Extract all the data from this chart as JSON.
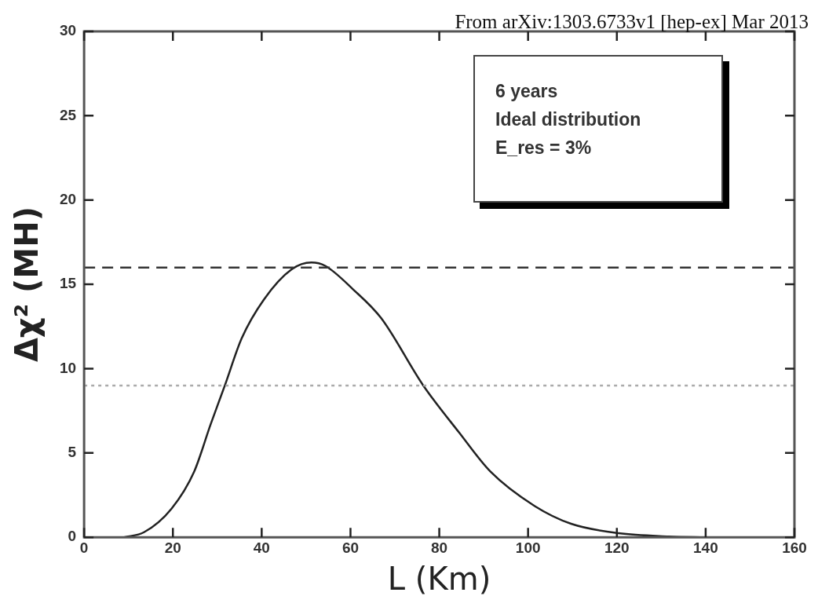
{
  "chart_data": {
    "type": "line",
    "xlabel": "L (Km)",
    "ylabel": "Δχ² (MH)",
    "annotations": [
      "From arXiv:1303.6733v1 [hep-ex] Mar 2013",
      "6 years",
      "Ideal distribution",
      "E_res = 3%"
    ],
    "x": [
      9,
      13.5,
      19.7,
      24.8,
      28.5,
      31.7,
      35.5,
      40.5,
      46.8,
      51.2,
      54.3,
      60.6,
      66.9,
      76.4,
      84.5,
      91.5,
      101.5,
      109.7,
      120.4,
      131.7,
      140
    ],
    "series": [
      {
        "color": "#222222",
        "values": [
          0,
          0.3,
          1.7,
          3.9,
          6.7,
          9.0,
          11.8,
          14.1,
          15.9,
          16.3,
          16.1,
          14.7,
          13.0,
          9.0,
          6.2,
          3.9,
          1.85,
          0.8,
          0.24,
          0.05,
          0
        ]
      }
    ],
    "xlim": [
      0,
      160
    ],
    "xticks": [
      0,
      20,
      40,
      60,
      80,
      100,
      120,
      140,
      160
    ],
    "ylim": [
      0,
      30
    ],
    "yticks": [
      0,
      5,
      10,
      15,
      20,
      25,
      30
    ],
    "ref_lines": [
      {
        "axis": "y",
        "value": 16,
        "color": "#333333",
        "line_style": "dashed"
      },
      {
        "axis": "y",
        "value": 9,
        "color": "#aaaaaa",
        "line_style": "dotted"
      }
    ],
    "grid": false,
    "legend": false,
    "marker": "none",
    "line_style": "solid"
  }
}
